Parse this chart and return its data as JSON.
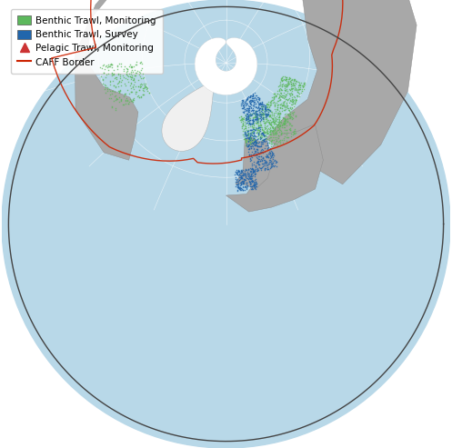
{
  "legend_items": [
    {
      "label": "Benthic Trawl, Monitoring",
      "color": "#5cb85c",
      "marker": "s"
    },
    {
      "label": "Benthic Trawl, Survey",
      "color": "#2166ac",
      "marker": "s"
    },
    {
      "label": "Pelagic Trawl, Monitoring",
      "color": "#d9534f",
      "marker": "^"
    },
    {
      "label": "CAFF Border",
      "color": "#cc2200",
      "marker": "line"
    }
  ],
  "figsize": [
    4.97,
    4.93
  ],
  "dpi": 100,
  "legend_bg": "#ffffff",
  "legend_alpha": 0.9,
  "legend_fontsize": 7.5,
  "green_color": "#5cb85c",
  "blue_color": "#2166ac",
  "red_color": "#cc3333",
  "caff_color": "#cc2200",
  "background_ocean": "#cce5f0",
  "background_land": "#aaaaaa",
  "ocean_color": "#b8d8e8",
  "land_color": "#a8a8a8",
  "ice_color": "#f0f0f0",
  "grid_color": "#d0d8e0",
  "arctic_ice_color": "#e8e8e8"
}
